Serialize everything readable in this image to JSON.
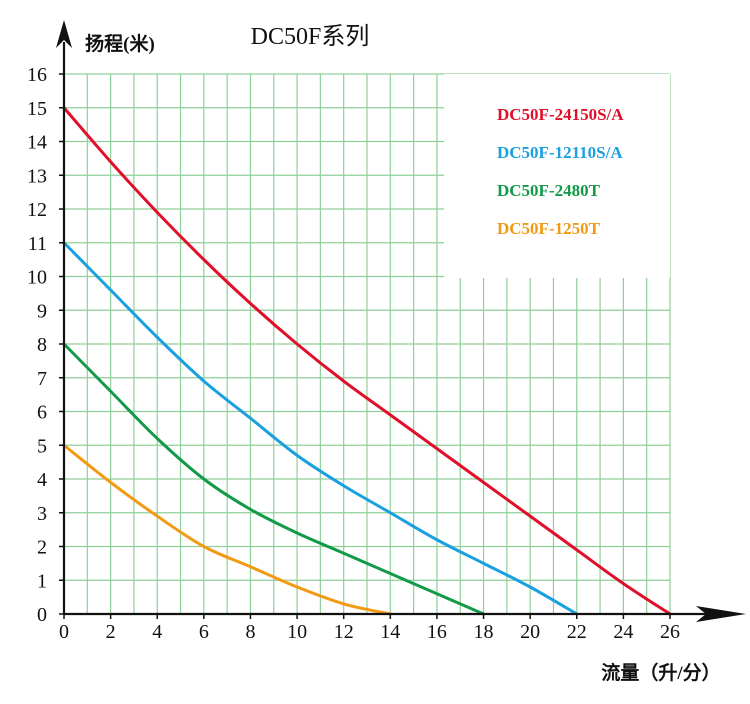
{
  "chart_data": {
    "type": "line",
    "title": "DC50F系列",
    "ylabel": "扬程(米)",
    "xlabel": "流量（升/分）",
    "xlim": [
      0,
      26
    ],
    "ylim": [
      0,
      16
    ],
    "x_ticks": [
      "0",
      "2",
      "4",
      "6",
      "8",
      "10",
      "12",
      "14",
      "16",
      "18",
      "20",
      "22",
      "24",
      "26"
    ],
    "y_ticks": [
      "0",
      "1",
      "2",
      "3",
      "4",
      "5",
      "6",
      "7",
      "8",
      "9",
      "10",
      "11",
      "12",
      "13",
      "14",
      "15",
      "16"
    ],
    "grid": true,
    "grid_color": "#8fcf99",
    "legend_position": "top-right",
    "series": [
      {
        "name": "DC50F-24150S/A",
        "color": "#e0102a",
        "points": [
          [
            0,
            15
          ],
          [
            2,
            13.4
          ],
          [
            4,
            11.9
          ],
          [
            6,
            10.5
          ],
          [
            8,
            9.2
          ],
          [
            10,
            8.0
          ],
          [
            12,
            6.9
          ],
          [
            14,
            5.9
          ],
          [
            16,
            4.9
          ],
          [
            18,
            3.9
          ],
          [
            20,
            2.9
          ],
          [
            22,
            1.9
          ],
          [
            24,
            0.9
          ],
          [
            26,
            0
          ]
        ]
      },
      {
        "name": "DC50F-12110S/A",
        "color": "#1aa0e0",
        "points": [
          [
            0,
            11
          ],
          [
            2,
            9.6
          ],
          [
            4,
            8.2
          ],
          [
            6,
            6.9
          ],
          [
            8,
            5.8
          ],
          [
            10,
            4.7
          ],
          [
            12,
            3.8
          ],
          [
            14,
            3.0
          ],
          [
            16,
            2.2
          ],
          [
            18,
            1.5
          ],
          [
            20,
            0.8
          ],
          [
            22,
            0
          ]
        ]
      },
      {
        "name": "DC50F-2480T",
        "color": "#129a48",
        "points": [
          [
            0,
            8
          ],
          [
            2,
            6.6
          ],
          [
            4,
            5.2
          ],
          [
            6,
            4.0
          ],
          [
            8,
            3.1
          ],
          [
            10,
            2.4
          ],
          [
            12,
            1.8
          ],
          [
            14,
            1.2
          ],
          [
            16,
            0.6
          ],
          [
            18,
            0
          ]
        ]
      },
      {
        "name": "DC50F-1250T",
        "color": "#f39a14",
        "points": [
          [
            0,
            5
          ],
          [
            2,
            3.9
          ],
          [
            4,
            2.9
          ],
          [
            6,
            2.0
          ],
          [
            8,
            1.4
          ],
          [
            10,
            0.8
          ],
          [
            12,
            0.3
          ],
          [
            14,
            0
          ]
        ]
      }
    ]
  }
}
